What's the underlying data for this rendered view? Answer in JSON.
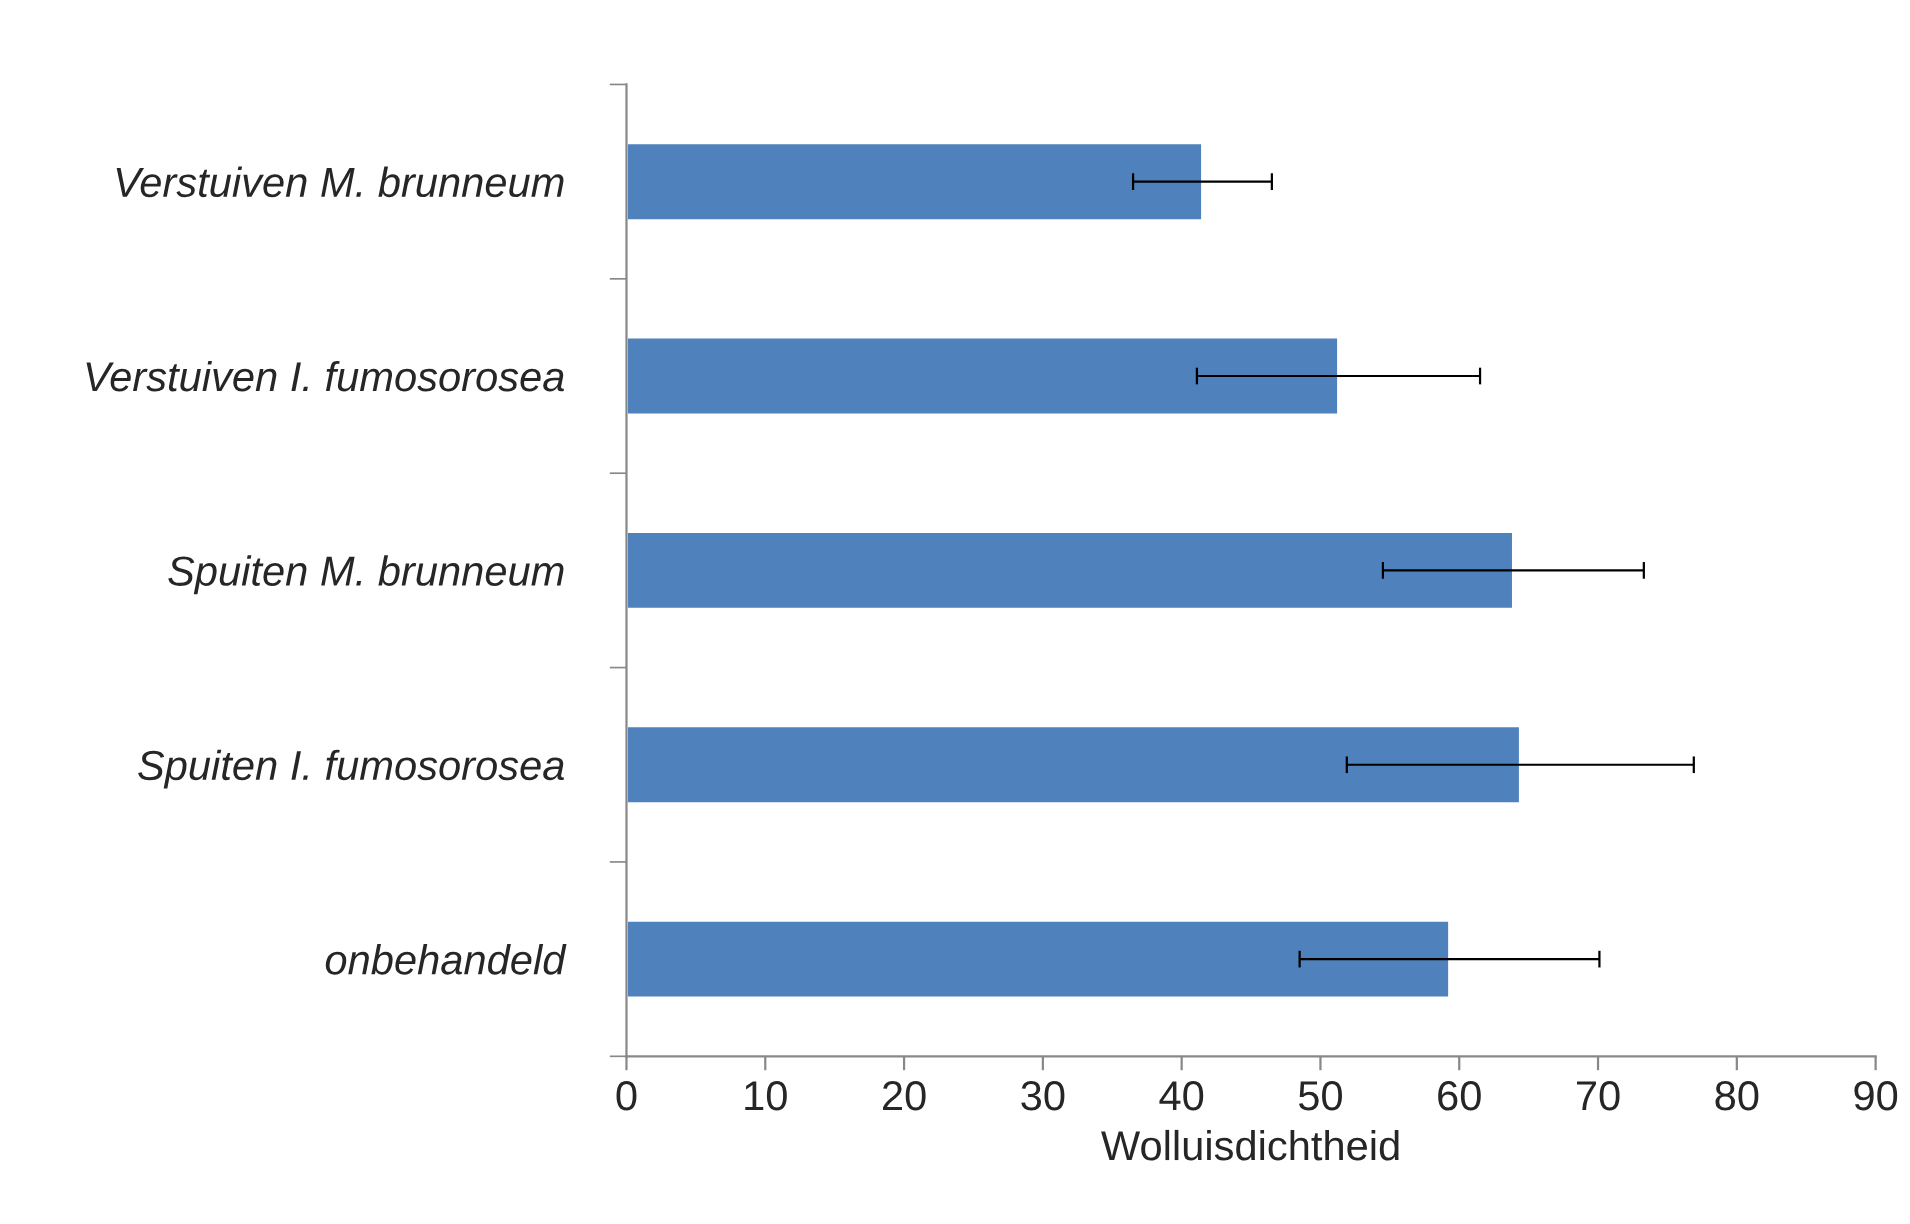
{
  "chart_data": {
    "type": "bar",
    "orientation": "horizontal",
    "xlabel": "Wolluisdichtheid",
    "categories": [
      "Verstuiven M. brunneum",
      "Verstuiven I. fumosorosea",
      "Spuiten M. brunneum",
      "Spuiten I. fumosorosea",
      "onbehandeld"
    ],
    "values": [
      41.5,
      51.3,
      63.9,
      64.4,
      59.3
    ],
    "errors": [
      5,
      10.2,
      9.4,
      12.5,
      10.8
    ],
    "color": "#4f81bd",
    "xlim": [
      0,
      90
    ],
    "xticks": [
      0,
      10,
      20,
      30,
      40,
      50,
      60,
      70,
      80,
      90
    ],
    "grid": false,
    "legend": false
  }
}
